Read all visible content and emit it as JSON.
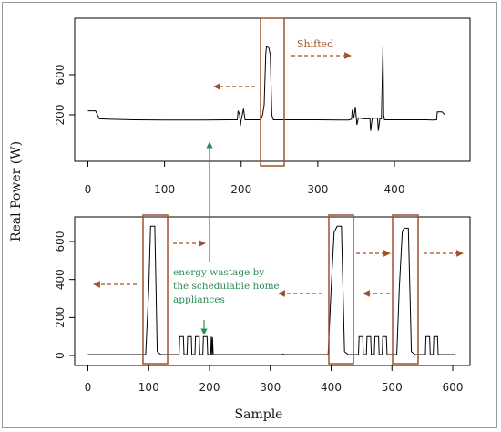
{
  "chart_data": [
    {
      "type": "line",
      "panel": "top",
      "xlim": [
        0,
        470
      ],
      "ylim": [
        0,
        900
      ],
      "x_ticks": [
        0,
        100,
        200,
        300,
        400
      ],
      "y_ticks": [
        200,
        600
      ],
      "series": [
        {
          "color": "#000000",
          "points": [
            [
              0,
              240
            ],
            [
              10,
              240
            ],
            [
              15,
              160
            ],
            [
              30,
              155
            ],
            [
              60,
              150
            ],
            [
              100,
              148
            ],
            [
              150,
              148
            ],
            [
              185,
              150
            ],
            [
              195,
              150
            ],
            [
              196,
              240
            ],
            [
              198,
              200
            ],
            [
              199,
              90
            ],
            [
              200,
              150
            ],
            [
              203,
              260
            ],
            [
              205,
              150
            ],
            [
              215,
              150
            ],
            [
              225,
              150
            ],
            [
              226,
              160
            ],
            [
              228,
              200
            ],
            [
              230,
              300
            ],
            [
              232,
              800
            ],
            [
              233,
              880
            ],
            [
              236,
              870
            ],
            [
              238,
              800
            ],
            [
              240,
              200
            ],
            [
              242,
              150
            ],
            [
              260,
              150
            ],
            [
              300,
              150
            ],
            [
              330,
              148
            ],
            [
              340,
              148
            ],
            [
              344,
              155
            ],
            [
              345,
              250
            ],
            [
              347,
              165
            ],
            [
              349,
              280
            ],
            [
              351,
              100
            ],
            [
              353,
              170
            ],
            [
              355,
              165
            ],
            [
              360,
              160
            ],
            [
              368,
              160
            ],
            [
              369,
              40
            ],
            [
              371,
              165
            ],
            [
              378,
              165
            ],
            [
              379,
              40
            ],
            [
              381,
              160
            ],
            [
              383,
              160
            ],
            [
              384,
              500
            ],
            [
              385,
              880
            ],
            [
              386,
              200
            ],
            [
              387,
              150
            ],
            [
              400,
              150
            ],
            [
              420,
              150
            ],
            [
              440,
              150
            ],
            [
              450,
              148
            ],
            [
              455,
              150
            ],
            [
              456,
              230
            ],
            [
              462,
              230
            ],
            [
              466,
              200
            ]
          ]
        }
      ],
      "annotations": {
        "shifted_label": "Shifted"
      }
    },
    {
      "type": "line",
      "panel": "bottom",
      "xlim": [
        0,
        610
      ],
      "ylim": [
        0,
        720
      ],
      "x_ticks": [
        0,
        100,
        200,
        300,
        400,
        500,
        600
      ],
      "y_ticks": [
        0,
        200,
        400,
        600
      ],
      "series": [
        {
          "color": "#000000",
          "points": [
            [
              0,
              5
            ],
            [
              95,
              5
            ],
            [
              100,
              350
            ],
            [
              103,
              680
            ],
            [
              110,
              680
            ],
            [
              114,
              20
            ],
            [
              120,
              5
            ],
            [
              150,
              5
            ],
            [
              151,
              100
            ],
            [
              157,
              100
            ],
            [
              158,
              5
            ],
            [
              163,
              5
            ],
            [
              164,
              100
            ],
            [
              170,
              100
            ],
            [
              171,
              5
            ],
            [
              176,
              5
            ],
            [
              177,
              100
            ],
            [
              183,
              100
            ],
            [
              184,
              5
            ],
            [
              189,
              5
            ],
            [
              190,
              100
            ],
            [
              196,
              100
            ],
            [
              197,
              5
            ],
            [
              202,
              5
            ],
            [
              203,
              100
            ],
            [
              204,
              5
            ],
            [
              205,
              95
            ],
            [
              206,
              5
            ],
            [
              240,
              5
            ],
            [
              300,
              5
            ],
            [
              320,
              5
            ],
            [
              321,
              8
            ],
            [
              322,
              5
            ],
            [
              395,
              5
            ],
            [
              400,
              350
            ],
            [
              405,
              650
            ],
            [
              410,
              680
            ],
            [
              417,
              680
            ],
            [
              422,
              20
            ],
            [
              428,
              5
            ],
            [
              445,
              5
            ],
            [
              446,
              100
            ],
            [
              452,
              100
            ],
            [
              453,
              5
            ],
            [
              458,
              5
            ],
            [
              459,
              100
            ],
            [
              465,
              100
            ],
            [
              466,
              5
            ],
            [
              471,
              5
            ],
            [
              472,
              100
            ],
            [
              478,
              100
            ],
            [
              479,
              5
            ],
            [
              484,
              5
            ],
            [
              485,
              100
            ],
            [
              491,
              100
            ],
            [
              492,
              5
            ],
            [
              508,
              5
            ],
            [
              512,
              350
            ],
            [
              517,
              650
            ],
            [
              520,
              670
            ],
            [
              527,
              670
            ],
            [
              532,
              20
            ],
            [
              538,
              5
            ],
            [
              555,
              5
            ],
            [
              556,
              100
            ],
            [
              562,
              100
            ],
            [
              563,
              5
            ],
            [
              568,
              5
            ],
            [
              569,
              100
            ],
            [
              575,
              100
            ],
            [
              576,
              5
            ],
            [
              605,
              5
            ]
          ]
        }
      ],
      "annotations": {
        "wastage_lines": [
          "energy wastage by",
          "the schedulable home",
          "appliances"
        ]
      }
    }
  ],
  "axes": {
    "ylabel": "Real Power (W)",
    "xlabel": "Sample"
  },
  "colors": {
    "highlight_box": "#a0522d",
    "arrows": "#a0522d",
    "green_annotation": "#2e8b57"
  }
}
